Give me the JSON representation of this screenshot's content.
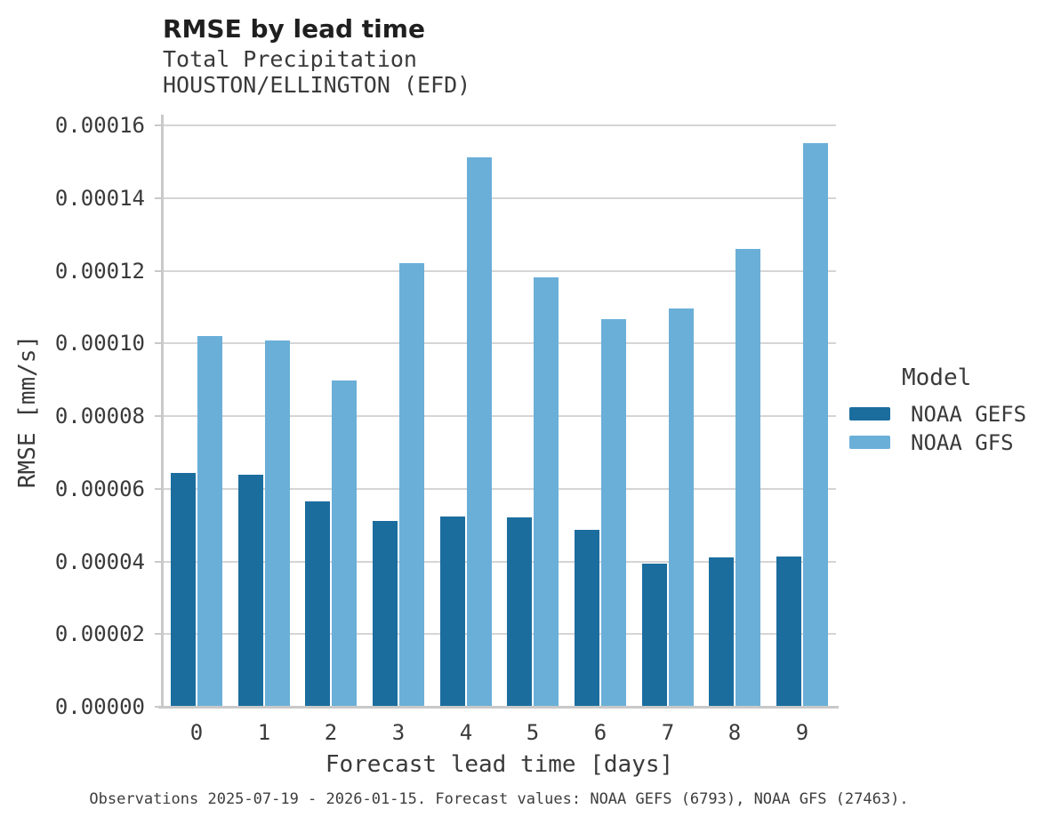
{
  "chart_data": {
    "type": "bar",
    "title": "RMSE by lead time",
    "subtitle": "Total Precipitation",
    "station": "HOUSTON/ELLINGTON (EFD)",
    "xlabel": "Forecast lead time [days]",
    "ylabel": "RMSE [mm/s]",
    "categories": [
      "0",
      "1",
      "2",
      "3",
      "4",
      "5",
      "6",
      "7",
      "8",
      "9"
    ],
    "series": [
      {
        "name": "NOAA GEFS",
        "color": "#1b6d9e",
        "values": [
          6.43e-05,
          6.39e-05,
          5.66e-05,
          5.11e-05,
          5.23e-05,
          5.22e-05,
          4.88e-05,
          3.94e-05,
          4.12e-05,
          4.14e-05
        ]
      },
      {
        "name": "NOAA GFS",
        "color": "#6aafd8",
        "values": [
          0.000102,
          0.0001008,
          8.98e-05,
          0.0001221,
          0.0001512,
          0.0001181,
          0.0001066,
          0.0001096,
          0.0001261,
          0.0001551
        ]
      }
    ],
    "ylim": [
      0,
      0.00016
    ],
    "ytick_step": 2e-05,
    "yticks": [
      "0.00000",
      "0.00002",
      "0.00004",
      "0.00006",
      "0.00008",
      "0.00010",
      "0.00012",
      "0.00014",
      "0.00016"
    ],
    "grid": true,
    "legend_position": "right"
  },
  "legend": {
    "title": "Model"
  },
  "caption": {
    "text": "Observations 2025-07-19 - 2026-01-15. Forecast values: NOAA GEFS (6793), NOAA GFS (27463)."
  },
  "style": {
    "gridline_color": "#d5d5d5",
    "axis_color": "#c9c9c9",
    "title_color": "#1f1f1f",
    "text_color": "#3a3a3a"
  }
}
